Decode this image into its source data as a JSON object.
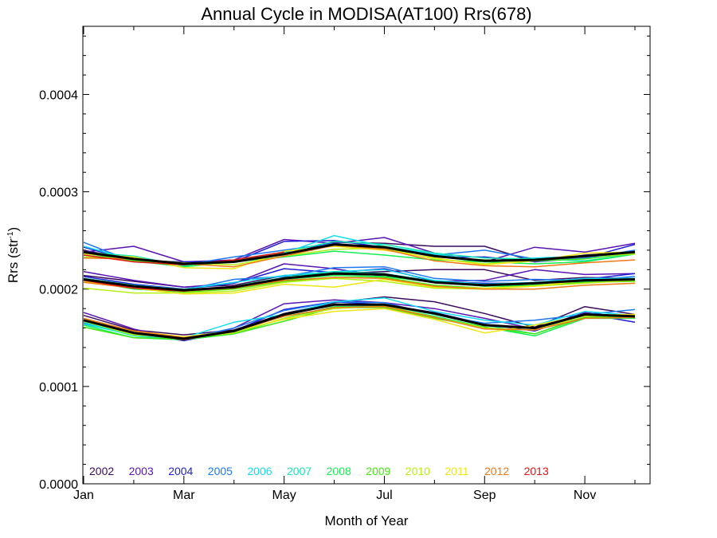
{
  "chart_data": {
    "type": "line",
    "title": "Annual Cycle in MODISA(AT100) Rrs(678)",
    "xlabel": "Month of Year",
    "ylabel": "Rrs (str",
    "ylabel_sup": "-1",
    "ylabel_close": ")",
    "xlim": [
      1,
      13
    ],
    "ylim": [
      0.0,
      0.00047
    ],
    "xticks": [
      {
        "label": "Jan",
        "value": 1
      },
      {
        "label": "Mar",
        "value": 3
      },
      {
        "label": "May",
        "value": 5
      },
      {
        "label": "Jul",
        "value": 7
      },
      {
        "label": "Sep",
        "value": 9
      },
      {
        "label": "Nov",
        "value": 11
      }
    ],
    "yticks": [
      {
        "label": "0.0000",
        "value": 0.0
      },
      {
        "label": "0.0001",
        "value": 0.0001
      },
      {
        "label": "0.0002",
        "value": 0.0002
      },
      {
        "label": "0.0003",
        "value": 0.0003
      },
      {
        "label": "0.0004",
        "value": 0.0004
      }
    ],
    "x": [
      1,
      2,
      3,
      4,
      5,
      6,
      7,
      8,
      9,
      10,
      11,
      12
    ],
    "groups": [
      {
        "group": "upper",
        "series": [
          {
            "name": "2002",
            "color": "#3b0a5e",
            "values": [
              0.00024,
              0.00023,
              0.000226,
              0.00023,
              0.000236,
              0.000248,
              0.000247,
              0.000244,
              0.000244,
              0.000228,
              0.000235,
              0.000238
            ]
          },
          {
            "name": "2003",
            "color": "#5a14b4",
            "values": [
              0.000238,
              0.000244,
              0.000228,
              0.00023,
              0.000251,
              0.000247,
              0.000253,
              0.000237,
              0.000228,
              0.000243,
              0.000238,
              0.000247
            ]
          },
          {
            "name": "2004",
            "color": "#1e1ed2",
            "values": [
              0.000243,
              0.000229,
              0.000228,
              0.000228,
              0.000249,
              0.00025,
              0.000243,
              0.000233,
              0.000233,
              0.000228,
              0.000232,
              0.000246
            ]
          },
          {
            "name": "2005",
            "color": "#1e78f0",
            "values": [
              0.000248,
              0.000228,
              0.000225,
              0.000233,
              0.00024,
              0.000247,
              0.000241,
              0.000235,
              0.00024,
              0.000231,
              0.000232,
              0.00024
            ]
          },
          {
            "name": "2006",
            "color": "#14dcf0",
            "values": [
              0.000244,
              0.00023,
              0.000226,
              0.000228,
              0.000237,
              0.000255,
              0.000244,
              0.000236,
              0.000229,
              0.000232,
              0.000234,
              0.000238
            ]
          },
          {
            "name": "2007",
            "color": "#14e6b4",
            "values": [
              0.000238,
              0.000234,
              0.000224,
              0.00023,
              0.000238,
              0.000249,
              0.000246,
              0.000237,
              0.000232,
              0.000231,
              0.000229,
              0.000236
            ]
          },
          {
            "name": "2008",
            "color": "#14f050",
            "values": [
              0.000235,
              0.000229,
              0.000223,
              0.000228,
              0.000233,
              0.000239,
              0.000235,
              0.00023,
              0.000228,
              0.000226,
              0.000228,
              0.000236
            ]
          },
          {
            "name": "2009",
            "color": "#46e614",
            "values": [
              0.000237,
              0.000229,
              0.000225,
              0.000229,
              0.000236,
              0.000245,
              0.000244,
              0.000233,
              0.00023,
              0.000229,
              0.000231,
              0.000237
            ]
          },
          {
            "name": "2010",
            "color": "#b4f014",
            "values": [
              0.000233,
              0.000231,
              0.000227,
              0.000225,
              0.000234,
              0.000241,
              0.000242,
              0.000231,
              0.000226,
              0.000229,
              0.000234,
              0.000236
            ]
          },
          {
            "name": "2011",
            "color": "#f0e614",
            "values": [
              0.000236,
              0.000233,
              0.000222,
              0.000221,
              0.000239,
              0.000244,
              0.00024,
              0.000232,
              0.000225,
              0.000229,
              0.000237,
              0.000238
            ]
          },
          {
            "name": "2012",
            "color": "#f07814",
            "values": [
              0.000232,
              0.000231,
              0.000226,
              0.000223,
              0.000234,
              0.000245,
              0.000241,
              0.000229,
              0.000224,
              0.000223,
              0.000227,
              0.00023
            ]
          },
          {
            "name": "2013",
            "color": "#e61414",
            "values": [
              0.000235,
              0.000228,
              0.000225,
              0.00023,
              0.000238
            ]
          },
          {
            "name": "mean",
            "color": "#000000",
            "values": [
              0.000238,
              0.000231,
              0.000226,
              0.000228,
              0.000236,
              0.000246,
              0.000243,
              0.000234,
              0.000229,
              0.00023,
              0.000234,
              0.000238
            ]
          }
        ]
      },
      {
        "group": "middle",
        "series": [
          {
            "name": "2002",
            "color": "#3b0a5e",
            "values": [
              0.000214,
              0.000208,
              0.000202,
              0.000204,
              0.000214,
              0.000216,
              0.000218,
              0.00022,
              0.00022,
              0.000209,
              0.000212,
              0.000211
            ]
          },
          {
            "name": "2003",
            "color": "#5a14b4",
            "values": [
              0.000218,
              0.000209,
              0.000202,
              0.000206,
              0.000226,
              0.000221,
              0.000213,
              0.000208,
              0.000209,
              0.00022,
              0.000215,
              0.000216
            ]
          },
          {
            "name": "2004",
            "color": "#1e1ed2",
            "values": [
              0.000213,
              0.000205,
              0.0002,
              0.000206,
              0.000221,
              0.000217,
              0.000221,
              0.000208,
              0.000206,
              0.000206,
              0.00021,
              0.000216
            ]
          },
          {
            "name": "2005",
            "color": "#1e78f0",
            "values": [
              0.000211,
              0.000204,
              0.000199,
              0.00021,
              0.000213,
              0.000222,
              0.000223,
              0.000211,
              0.000208,
              0.00021,
              0.000209,
              0.000213
            ]
          },
          {
            "name": "2006",
            "color": "#14dcf0",
            "values": [
              0.00021,
              0.000204,
              0.0002,
              0.000207,
              0.000214,
              0.000218,
              0.00022,
              0.000209,
              0.000205,
              0.000207,
              0.000211,
              0.000211
            ]
          },
          {
            "name": "2007",
            "color": "#14e6b4",
            "values": [
              0.000211,
              0.000204,
              0.000198,
              0.000203,
              0.000212,
              0.000218,
              0.000216,
              0.000208,
              0.000204,
              0.000206,
              0.000208,
              0.000211
            ]
          },
          {
            "name": "2008",
            "color": "#14f050",
            "values": [
              0.000209,
              0.0002,
              0.000197,
              0.000201,
              0.00021,
              0.000214,
              0.000213,
              0.000207,
              0.000203,
              0.000204,
              0.000207,
              0.000209
            ]
          },
          {
            "name": "2009",
            "color": "#46e614",
            "values": [
              0.000208,
              0.000201,
              0.000197,
              0.0002,
              0.000208,
              0.000212,
              0.000212,
              0.000204,
              0.000201,
              0.000204,
              0.000207,
              0.000208
            ]
          },
          {
            "name": "2010",
            "color": "#b4f014",
            "values": [
              0.000201,
              0.000196,
              0.000196,
              0.000198,
              0.000207,
              0.000211,
              0.000208,
              0.000201,
              0.0002,
              0.000203,
              0.000206,
              0.000209
            ]
          },
          {
            "name": "2011",
            "color": "#f0e614",
            "values": [
              0.000208,
              0.000201,
              0.000195,
              0.000196,
              0.000205,
              0.000202,
              0.00021,
              0.000202,
              0.000201,
              0.000203,
              0.000209,
              0.00021
            ]
          },
          {
            "name": "2012",
            "color": "#f07814",
            "values": [
              0.000207,
              0.000201,
              0.000198,
              0.000201,
              0.000209,
              0.000212,
              0.000211,
              0.000203,
              0.0002,
              0.0002,
              0.000204,
              0.000206
            ]
          },
          {
            "name": "2013",
            "color": "#e61414",
            "values": [
              0.000209,
              0.000201,
              0.000198,
              0.000203,
              0.00021
            ]
          },
          {
            "name": "mean",
            "color": "#000000",
            "values": [
              0.00021,
              0.000203,
              0.000199,
              0.000202,
              0.000211,
              0.000216,
              0.000215,
              0.000207,
              0.000204,
              0.000206,
              0.000209,
              0.00021
            ]
          }
        ]
      },
      {
        "group": "lower",
        "series": [
          {
            "name": "2002",
            "color": "#3b0a5e",
            "values": [
              0.000173,
              0.000158,
              0.000153,
              0.000158,
              0.000175,
              0.000186,
              0.000192,
              0.000187,
              0.000175,
              0.000161,
              0.000182,
              0.000174
            ]
          },
          {
            "name": "2003",
            "color": "#5a14b4",
            "values": [
              0.000176,
              0.000159,
              0.000148,
              0.00016,
              0.000185,
              0.000189,
              0.000186,
              0.00018,
              0.00017,
              0.000159,
              0.000176,
              0.00017
            ]
          },
          {
            "name": "2004",
            "color": "#1e1ed2",
            "values": [
              0.000168,
              0.000155,
              0.000147,
              0.000157,
              0.000179,
              0.000187,
              0.000184,
              0.000176,
              0.000164,
              0.000157,
              0.000175,
              0.000166
            ]
          },
          {
            "name": "2005",
            "color": "#1e78f0",
            "values": [
              0.000165,
              0.000153,
              0.000149,
              0.00016,
              0.000178,
              0.000187,
              0.000186,
              0.000174,
              0.000165,
              0.000168,
              0.000174,
              0.000179
            ]
          },
          {
            "name": "2006",
            "color": "#14dcf0",
            "values": [
              0.000164,
              0.000153,
              0.00015,
              0.000166,
              0.000174,
              0.000187,
              0.000191,
              0.000177,
              0.000168,
              0.000163,
              0.000177,
              0.000173
            ]
          },
          {
            "name": "2007",
            "color": "#14e6b4",
            "values": [
              0.000166,
              0.000152,
              0.000148,
              0.000156,
              0.000173,
              0.000184,
              0.000183,
              0.000174,
              0.000163,
              0.000154,
              0.000172,
              0.000173
            ]
          },
          {
            "name": "2008",
            "color": "#14f050",
            "values": [
              0.000163,
              0.00015,
              0.000148,
              0.000154,
              0.00017,
              0.000182,
              0.000182,
              0.000172,
              0.000161,
              0.000152,
              0.00017,
              0.00017
            ]
          },
          {
            "name": "2009",
            "color": "#46e614",
            "values": [
              0.000161,
              0.00015,
              0.000149,
              0.000154,
              0.000167,
              0.000181,
              0.000181,
              0.00017,
              0.000161,
              0.000154,
              0.000171,
              0.000172
            ]
          },
          {
            "name": "2010",
            "color": "#b4f014",
            "values": [
              0.000167,
              0.000153,
              0.00015,
              0.000155,
              0.00017,
              0.00018,
              0.000183,
              0.000171,
              0.00016,
              0.000158,
              0.000172,
              0.000173
            ]
          },
          {
            "name": "2011",
            "color": "#f0e614",
            "values": [
              0.000169,
              0.000157,
              0.000151,
              0.000157,
              0.000169,
              0.000177,
              0.00018,
              0.000169,
              0.000155,
              0.000163,
              0.000173,
              0.000174
            ]
          },
          {
            "name": "2012",
            "color": "#f07814",
            "values": [
              0.00017,
              0.000157,
              0.00015,
              0.000157,
              0.000172,
              0.000181,
              0.000182,
              0.000171,
              0.000159,
              0.000158,
              0.00017,
              0.000171
            ]
          },
          {
            "name": "2013",
            "color": "#e61414",
            "values": [
              0.000168,
              0.000155,
              0.000148,
              0.000157,
              0.000173
            ]
          },
          {
            "name": "mean",
            "color": "#000000",
            "values": [
              0.000168,
              0.000155,
              0.000149,
              0.000157,
              0.000174,
              0.000184,
              0.000184,
              0.000175,
              0.000163,
              0.00016,
              0.000174,
              0.000172
            ]
          }
        ]
      }
    ],
    "legend": {
      "placement": "bottom-left inside plot",
      "entries": [
        {
          "label": "2002",
          "color": "#3b0a5e"
        },
        {
          "label": "2003",
          "color": "#5a14b4"
        },
        {
          "label": "2004",
          "color": "#1e1ed2"
        },
        {
          "label": "2005",
          "color": "#1e78f0"
        },
        {
          "label": "2006",
          "color": "#14dcf0"
        },
        {
          "label": "2007",
          "color": "#14e6b4"
        },
        {
          "label": "2008",
          "color": "#14f050"
        },
        {
          "label": "2009",
          "color": "#46e614"
        },
        {
          "label": "2010",
          "color": "#b4f014"
        },
        {
          "label": "2011",
          "color": "#f0e614"
        },
        {
          "label": "2012",
          "color": "#f07814"
        },
        {
          "label": "2013",
          "color": "#e61414"
        }
      ]
    },
    "grid": false
  }
}
